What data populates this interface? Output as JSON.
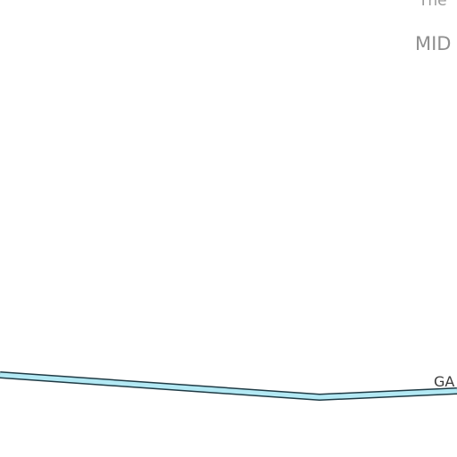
{
  "map": {
    "labels": {
      "top_partial": "The",
      "district_partial": "MID",
      "street_partial": "GA"
    },
    "street": {
      "fill_color": "#b3e9f4",
      "casing_color": "#1f3a44"
    },
    "background_color": "#ffffff"
  }
}
